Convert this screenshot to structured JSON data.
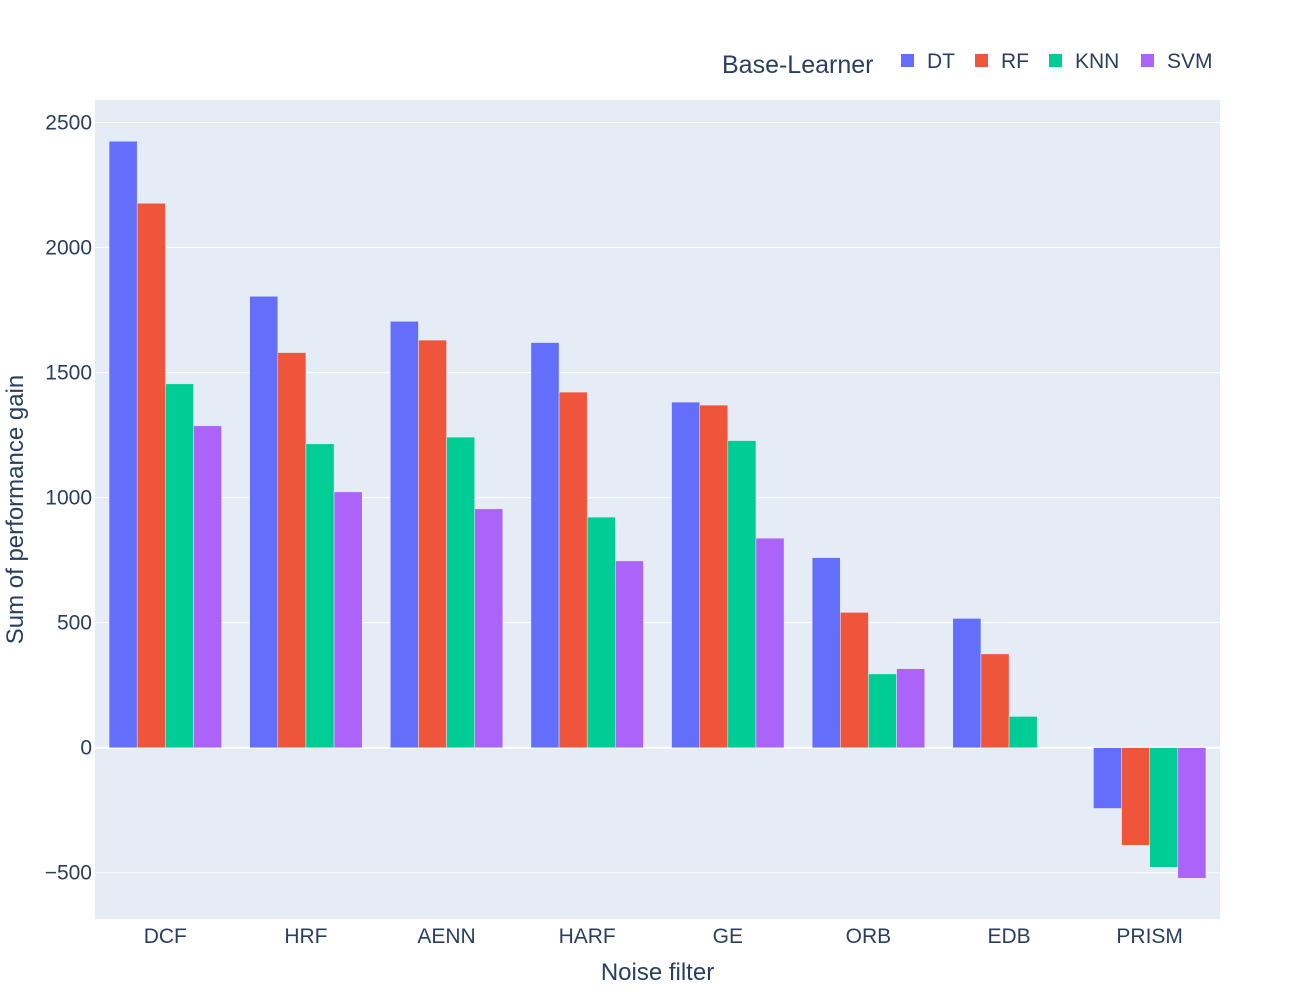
{
  "chart_data": {
    "type": "bar",
    "xlabel": "Noise filter",
    "ylabel": "Sum of performance gain",
    "categories": [
      "DCF",
      "HRF",
      "AENN",
      "HARF",
      "GE",
      "ORB",
      "EDB",
      "PRISM"
    ],
    "series": [
      {
        "name": "DT",
        "color": "#636efa",
        "values": [
          2425,
          1805,
          1705,
          1620,
          1382,
          760,
          517,
          -243
        ]
      },
      {
        "name": "RF",
        "color": "#ef553b",
        "values": [
          2177,
          1580,
          1630,
          1422,
          1370,
          541,
          375,
          -390
        ]
      },
      {
        "name": "KNN",
        "color": "#00cc96",
        "values": [
          1455,
          1215,
          1242,
          922,
          1228,
          295,
          125,
          -478
        ]
      },
      {
        "name": "SVM",
        "color": "#ab63fa",
        "values": [
          1287,
          1023,
          955,
          747,
          838,
          316,
          0,
          -522
        ]
      }
    ],
    "ylim": [
      -685,
      2590
    ],
    "yticks": [
      -500,
      0,
      500,
      1000,
      1500,
      2000,
      2500
    ],
    "ytick_labels": [
      "−500",
      "0",
      "500",
      "1000",
      "1500",
      "2000",
      "2500"
    ],
    "legend": {
      "title": "Base-Learner",
      "placement": "top-right",
      "orientation": "horizontal"
    },
    "grid": true,
    "plot_background": "#e5ecf6",
    "gridline_color": "#ffffff",
    "text_color": "#2a3f5f"
  }
}
